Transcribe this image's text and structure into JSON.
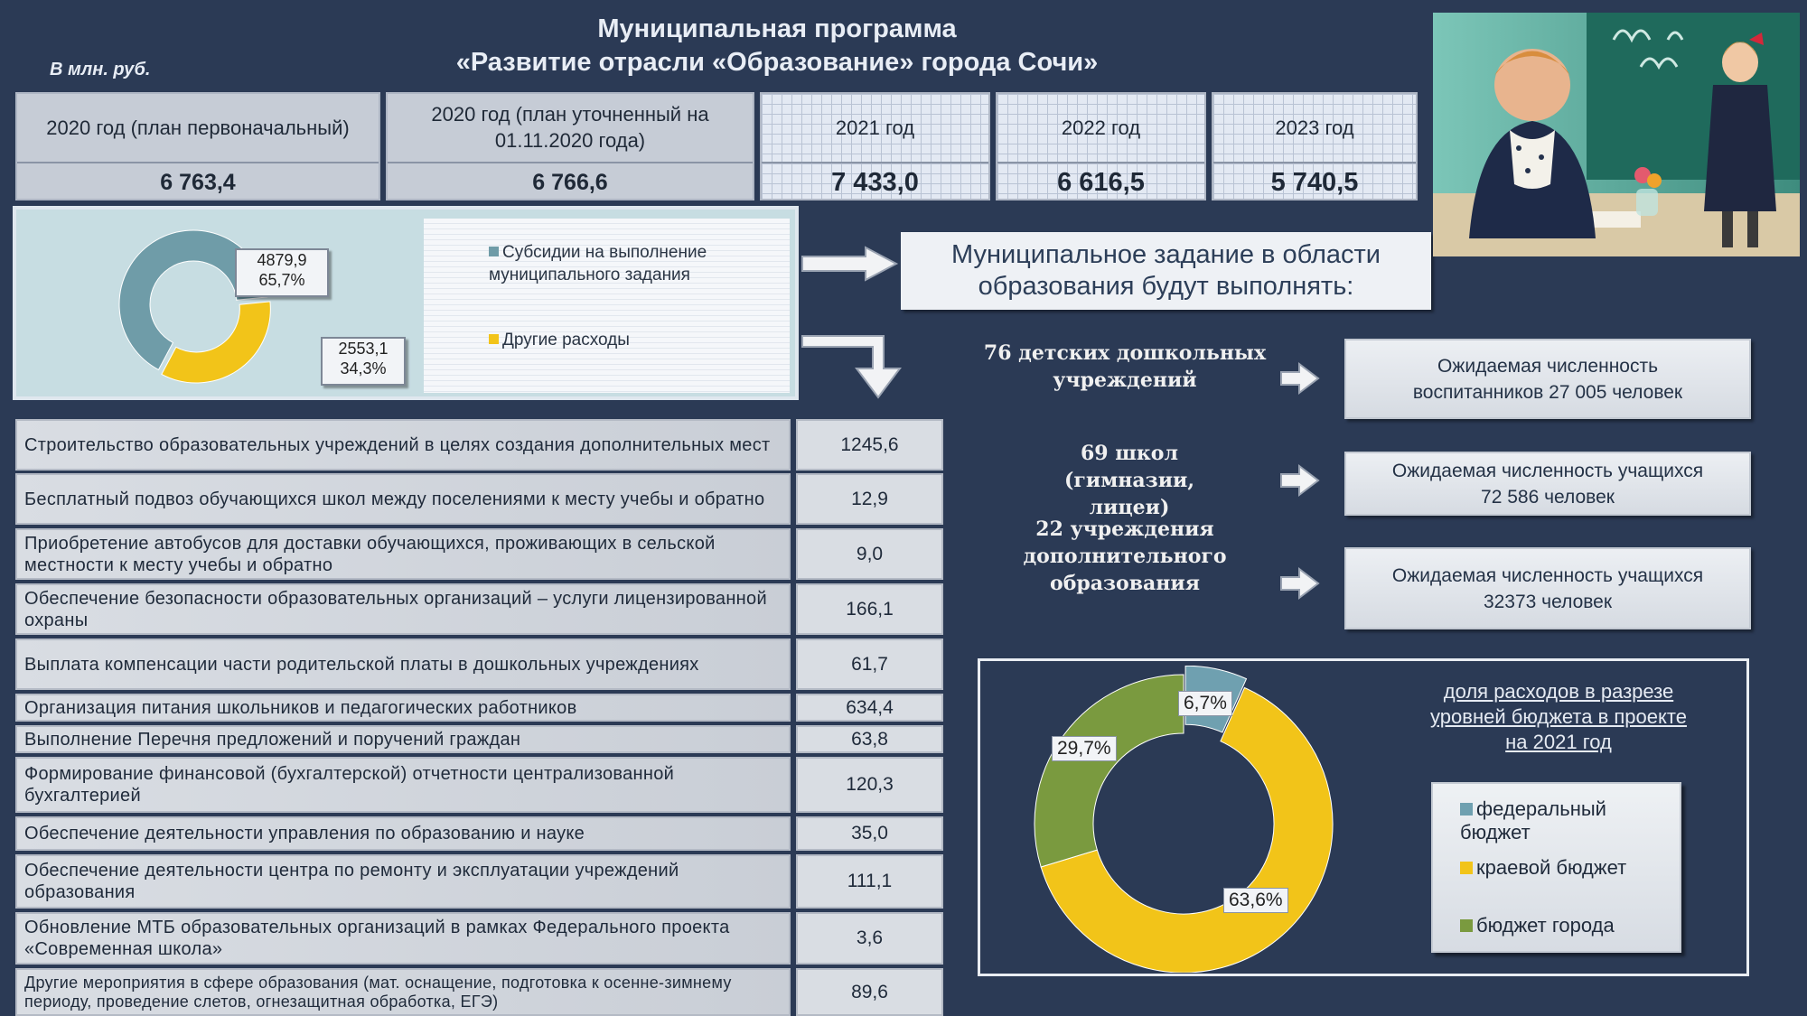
{
  "header": {
    "title_line1": "Муниципальная программа",
    "title_line2": "«Развитие отрасли «Образование» города Сочи»",
    "unit": "В млн. руб."
  },
  "years": [
    {
      "label": "2020 год (план первоначальный)",
      "value": "6 763,4"
    },
    {
      "label": "2020 год (план уточненный на 01.11.2020 года)",
      "value": "6 766,6"
    },
    {
      "label": "2021 год",
      "value": "7 433,0"
    },
    {
      "label": "2022 год",
      "value": "6 616,5"
    },
    {
      "label": "2023 год",
      "value": "5 740,5"
    }
  ],
  "chart1": {
    "slices": [
      {
        "name": "Субсидии на выполнение муниципального задания",
        "value": 4879.9,
        "value_label": "4879,9",
        "percent_label": "65,7%",
        "color": "#6f9ca8"
      },
      {
        "name": "Другие расходы",
        "value": 2553.1,
        "value_label": "2553,1",
        "percent_label": "34,3%",
        "color": "#f2c419"
      }
    ]
  },
  "mz_box": "Муниципальное задание в области образования будут выполнять:",
  "institutions": [
    {
      "name": "76 детских дошкольных учреждений",
      "expected": "Ожидаемая численность воспитанников 27 005 человек"
    },
    {
      "name": "69 школ (гимназии, лицеи)",
      "expected": "Ожидаемая численность учащихся 72 586 человек"
    },
    {
      "name": "22 учреждения дополнительного образования",
      "expected": "Ожидаемая численность учащихся 32373 человек"
    }
  ],
  "expenses": [
    {
      "label": "Строительство образовательных учреждений в целях создания дополнительных мест",
      "value": "1245,6"
    },
    {
      "label": "Бесплатный подвоз обучающихся школ между поселениями к месту учебы и обратно",
      "value": "12,9"
    },
    {
      "label": "Приобретение автобусов для доставки обучающихся, проживающих в сельской местности к месту учебы и обратно",
      "value": "9,0"
    },
    {
      "label": "Обеспечение безопасности образовательных организаций – услуги лицензированной охраны",
      "value": "166,1"
    },
    {
      "label": "Выплата компенсации части родительской платы в дошкольных учреждениях",
      "value": "61,7"
    },
    {
      "label": "Организация питания школьников и педагогических работников",
      "value": "634,4"
    },
    {
      "label": "Выполнение Перечня предложений и поручений граждан",
      "value": "63,8"
    },
    {
      "label": "Формирование финансовой (бухгалтерской) отчетности централизованной бухгалтерией",
      "value": "120,3"
    },
    {
      "label": "Обеспечение деятельности управления по образованию и науке",
      "value": "35,0"
    },
    {
      "label": "Обеспечение деятельности центра по ремонту и эксплуатации учреждений образования",
      "value": "111,1"
    },
    {
      "label": "Обновление МТБ образовательных организаций в рамках Федерального проекта «Современная школа»",
      "value": "3,6"
    },
    {
      "label": "Другие мероприятия в сфере образования (мат. оснащение, подготовка к осенне-зимнему периоду, проведение слетов, огнезащитная обработка, ЕГЭ)",
      "value": "89,6"
    }
  ],
  "chart2": {
    "title": "доля расходов в разрезе уровней бюджета в проекте на 2021 год",
    "slices": [
      {
        "name": "федеральный бюджет",
        "percent": 6.7,
        "label": "6,7%",
        "color": "#6fa0b0"
      },
      {
        "name": "краевой бюджет",
        "percent": 63.6,
        "label": "63,6%",
        "color": "#f2c419"
      },
      {
        "name": "бюджет города",
        "percent": 29.7,
        "label": "29,7%",
        "color": "#7a9a3f"
      }
    ]
  }
}
